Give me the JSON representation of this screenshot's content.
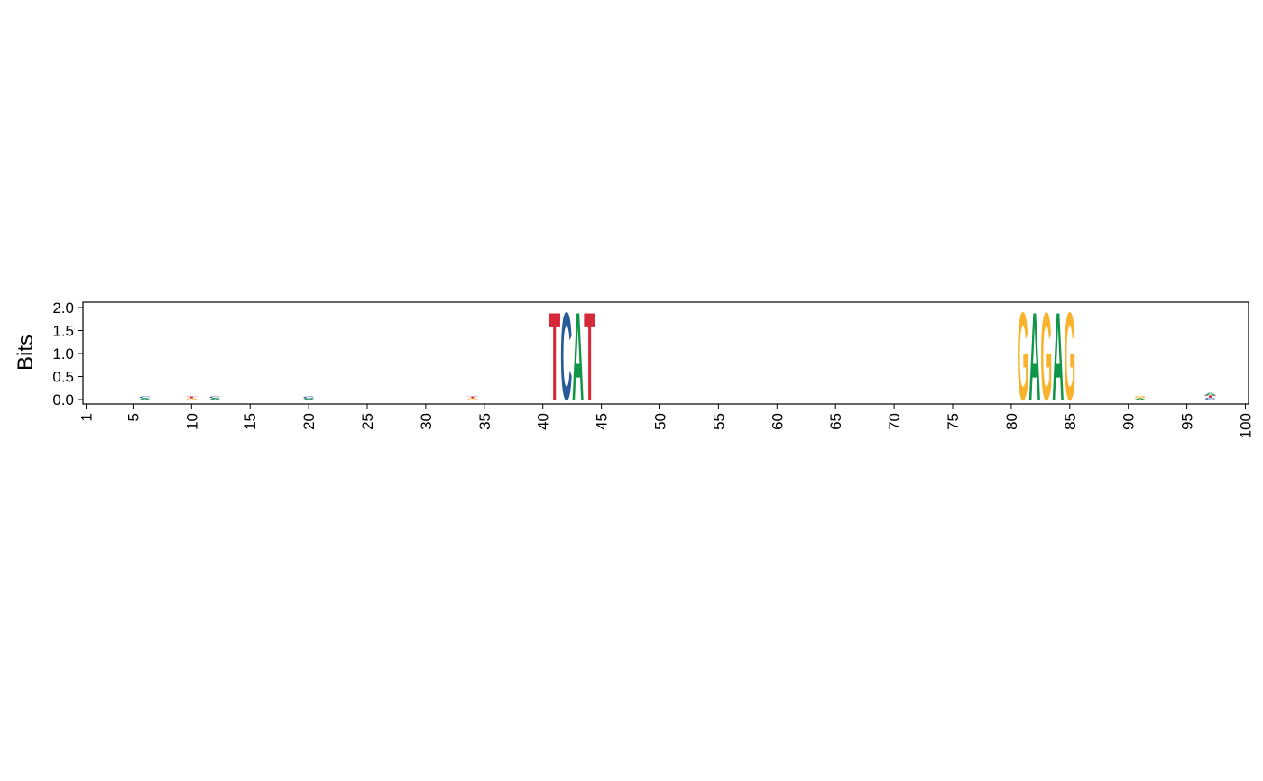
{
  "chart_data": {
    "type": "sequence-logo",
    "ylabel": "Bits",
    "ylim": [
      0,
      2.1
    ],
    "y_ticks": [
      "0.0",
      "0.5",
      "1.0",
      "1.5",
      "2.0"
    ],
    "x_range": [
      1,
      100
    ],
    "x_ticks": [
      "1",
      "5",
      "10",
      "15",
      "20",
      "25",
      "30",
      "35",
      "40",
      "45",
      "50",
      "55",
      "60",
      "65",
      "70",
      "75",
      "80",
      "85",
      "90",
      "95",
      "100"
    ],
    "colors": {
      "A": "#109648",
      "C": "#255c99",
      "G": "#f7b32b",
      "T": "#d62839"
    },
    "positions": [
      {
        "pos": 41,
        "letters": [
          {
            "base": "T",
            "bits": 1.95
          }
        ]
      },
      {
        "pos": 42,
        "letters": [
          {
            "base": "C",
            "bits": 1.95
          }
        ]
      },
      {
        "pos": 43,
        "letters": [
          {
            "base": "A",
            "bits": 1.95
          }
        ]
      },
      {
        "pos": 44,
        "letters": [
          {
            "base": "T",
            "bits": 1.95
          }
        ]
      },
      {
        "pos": 81,
        "letters": [
          {
            "base": "G",
            "bits": 1.95
          }
        ]
      },
      {
        "pos": 82,
        "letters": [
          {
            "base": "A",
            "bits": 1.95
          }
        ]
      },
      {
        "pos": 83,
        "letters": [
          {
            "base": "G",
            "bits": 1.95
          }
        ]
      },
      {
        "pos": 84,
        "letters": [
          {
            "base": "A",
            "bits": 1.95
          }
        ]
      },
      {
        "pos": 85,
        "letters": [
          {
            "base": "G",
            "bits": 1.95
          }
        ]
      },
      {
        "pos": 6,
        "letters": [
          {
            "base": "C",
            "bits": 0.04
          },
          {
            "base": "A",
            "bits": 0.03
          }
        ]
      },
      {
        "pos": 10,
        "letters": [
          {
            "base": "T",
            "bits": 0.04
          },
          {
            "base": "G",
            "bits": 0.03
          }
        ]
      },
      {
        "pos": 12,
        "letters": [
          {
            "base": "C",
            "bits": 0.04
          },
          {
            "base": "A",
            "bits": 0.03
          }
        ]
      },
      {
        "pos": 20,
        "letters": [
          {
            "base": "C",
            "bits": 0.05
          },
          {
            "base": "A",
            "bits": 0.02
          }
        ]
      },
      {
        "pos": 34,
        "letters": [
          {
            "base": "T",
            "bits": 0.04
          },
          {
            "base": "G",
            "bits": 0.03
          }
        ]
      },
      {
        "pos": 91,
        "letters": [
          {
            "base": "G",
            "bits": 0.05
          },
          {
            "base": "A",
            "bits": 0.03
          }
        ]
      },
      {
        "pos": 97,
        "letters": [
          {
            "base": "A",
            "bits": 0.06
          },
          {
            "base": "C",
            "bits": 0.04
          },
          {
            "base": "T",
            "bits": 0.05
          }
        ]
      }
    ]
  }
}
